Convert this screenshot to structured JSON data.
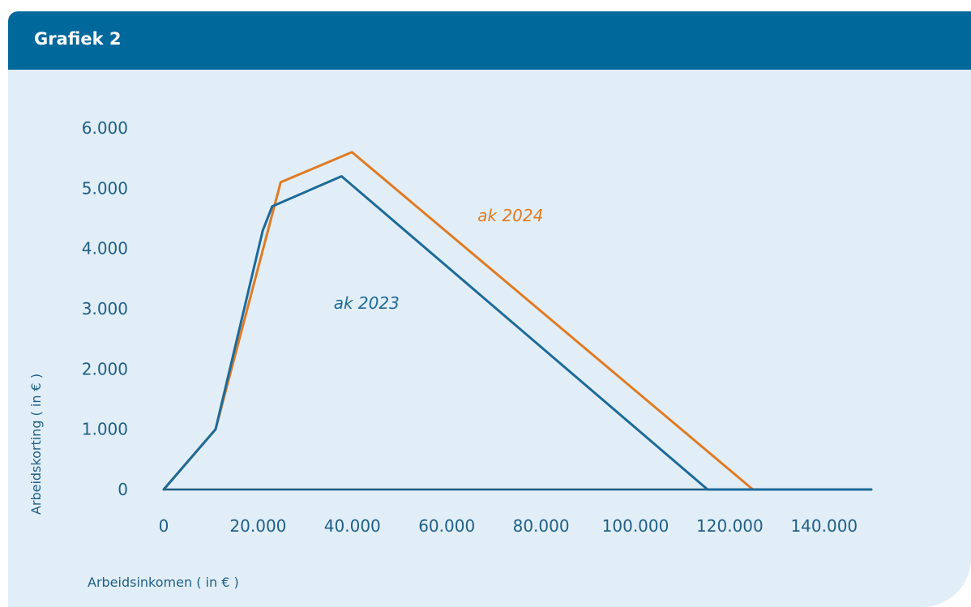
{
  "header": {
    "title": "Grafiek 2"
  },
  "colors": {
    "ak2024": "#e07b24",
    "ak2023": "#1d6a99",
    "axis": "#1d5a82",
    "tick_text": "#1f5f86"
  },
  "chart_data": {
    "type": "line",
    "title": "Grafiek 2",
    "xlabel": "Arbeidsinkomen ( in € )",
    "ylabel": "Arbeidskorting ( in € )",
    "xlim": [
      0,
      150000
    ],
    "ylim": [
      0,
      6000
    ],
    "x_ticks": [
      0,
      20000,
      40000,
      60000,
      80000,
      100000,
      120000,
      140000
    ],
    "x_tick_labels": [
      "0",
      "20.000",
      "40.000",
      "60.000",
      "80.000",
      "100.000",
      "120.000",
      "140.000"
    ],
    "y_ticks": [
      0,
      1000,
      2000,
      3000,
      4000,
      5000,
      6000
    ],
    "y_tick_labels": [
      "0",
      "1.000",
      "2.000",
      "3.000",
      "4.000",
      "5.000",
      "6.000"
    ],
    "grid": false,
    "series": [
      {
        "name": "ak 2024",
        "color": "#e07b24",
        "points": [
          [
            0,
            0
          ],
          [
            11000,
            1000
          ],
          [
            24800,
            5100
          ],
          [
            39900,
            5600
          ],
          [
            124900,
            0
          ],
          [
            150000,
            0
          ]
        ]
      },
      {
        "name": "ak 2023",
        "color": "#1d6a99",
        "points": [
          [
            0,
            0
          ],
          [
            11000,
            1000
          ],
          [
            21000,
            4300
          ],
          [
            23000,
            4700
          ],
          [
            37700,
            5200
          ],
          [
            115300,
            0
          ],
          [
            150000,
            0
          ]
        ]
      }
    ],
    "annotations": [
      {
        "text": "ak 2024",
        "x": 73500,
        "y": 4450,
        "series": "ak 2024"
      },
      {
        "text": "ak 2023",
        "x": 43000,
        "y": 3000,
        "series": "ak 2023"
      }
    ]
  }
}
